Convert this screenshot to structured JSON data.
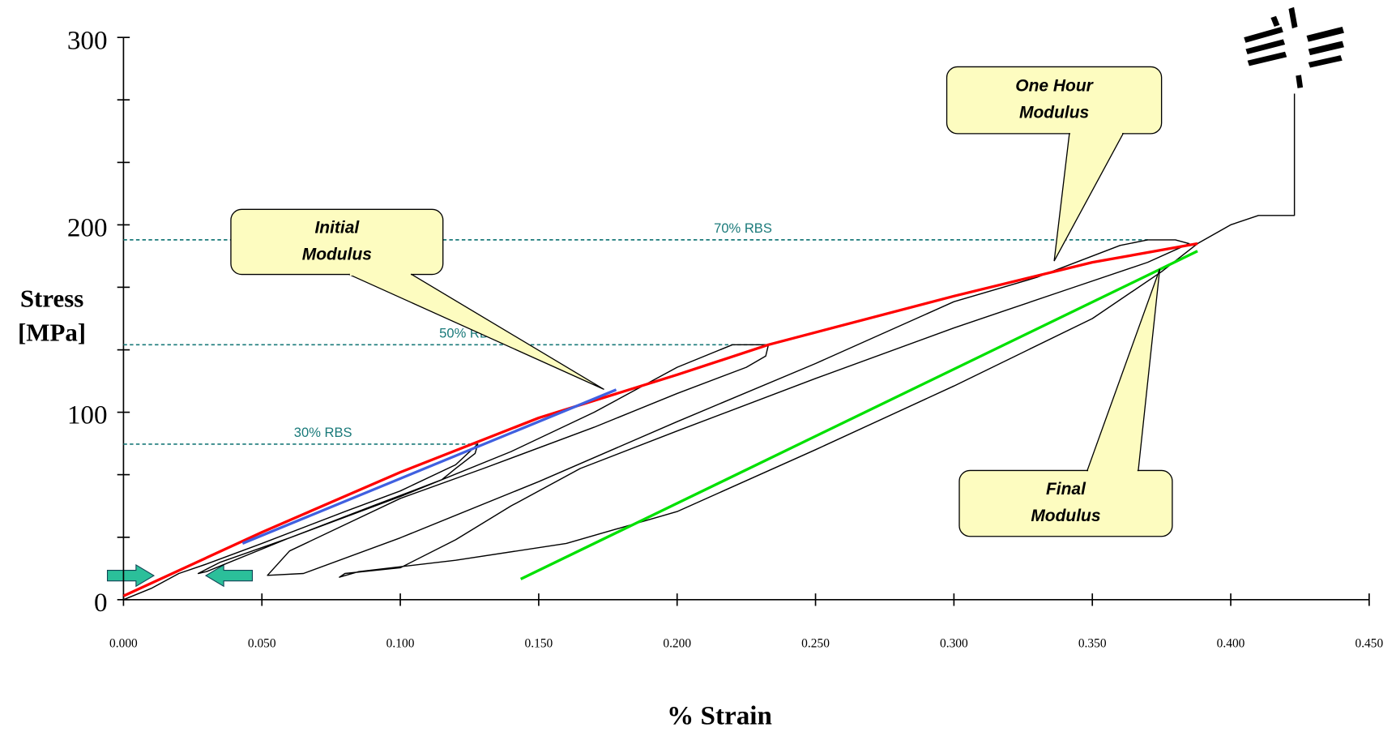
{
  "chart_data": {
    "type": "line",
    "x_label": "% Strain",
    "y_label": [
      "Stress",
      "[MPa]"
    ],
    "xlim": [
      0,
      0.45
    ],
    "ylim": [
      0,
      300
    ],
    "xticks": [
      {
        "value": 0,
        "label": "0.000"
      },
      {
        "value": 0.05,
        "label": "0.050"
      },
      {
        "value": 0.1,
        "label": "0.100"
      },
      {
        "value": 0.15,
        "label": "0.150"
      },
      {
        "value": 0.2,
        "label": "0.200"
      },
      {
        "value": 0.25,
        "label": "0.250"
      },
      {
        "value": 0.3,
        "label": "0.300"
      },
      {
        "value": 0.35,
        "label": "0.350"
      },
      {
        "value": 0.4,
        "label": "0.400"
      },
      {
        "value": 0.45,
        "label": "0.450"
      }
    ],
    "yticks": [
      0,
      100,
      200,
      300
    ],
    "y_minor_ticks": [
      33.3,
      66.7,
      133.3,
      166.7,
      233.3,
      266.7
    ],
    "series": [
      {
        "color": "#000000",
        "x": [
          0,
          0.01,
          0.02,
          0.03,
          0.05,
          0.08,
          0.1,
          0.12,
          0.128,
          0.127,
          0.12,
          0.115,
          0.09,
          0.06,
          0.035,
          0.027,
          0.03,
          0.06,
          0.1,
          0.14,
          0.17,
          0.2,
          0.22,
          0.233,
          0.232,
          0.225,
          0.2,
          0.17,
          0.13,
          0.1,
          0.06,
          0.052,
          0.065,
          0.1,
          0.15,
          0.2,
          0.25,
          0.3,
          0.33,
          0.36,
          0.37,
          0.38,
          0.385,
          0.37,
          0.34,
          0.3,
          0.25,
          0.2,
          0.165,
          0.14,
          0.12,
          0.1,
          0.08,
          0.078,
          0.085,
          0.12,
          0.16,
          0.2,
          0.25,
          0.3,
          0.35,
          0.375,
          0.388,
          0.4,
          0.41,
          0.423,
          0.423
        ],
        "values": [
          0,
          6,
          14,
          19,
          30,
          47,
          58,
          72,
          83,
          78,
          70,
          64,
          50,
          33,
          20,
          14,
          15,
          33,
          55,
          79,
          100,
          124,
          136,
          136,
          130,
          124,
          110,
          92,
          70,
          54,
          26,
          13,
          14,
          33,
          63,
          95,
          126,
          159,
          172,
          189,
          192,
          192,
          190,
          180,
          165,
          145,
          118,
          90,
          70,
          50,
          32,
          17,
          14,
          12,
          15,
          21,
          30,
          47,
          80,
          114,
          150,
          175,
          190,
          200,
          205,
          205,
          270
        ]
      },
      {
        "color": "#ff0000",
        "x": [
          0,
          0.05,
          0.1,
          0.15,
          0.2,
          0.233,
          0.3,
          0.35,
          0.388
        ],
        "values": [
          2,
          36,
          68,
          97,
          120,
          136,
          162,
          180,
          190
        ]
      },
      {
        "color": "#4060e0",
        "x": [
          0.043,
          0.178
        ],
        "values": [
          30,
          112
        ]
      },
      {
        "color": "#00e000",
        "x": [
          0.1435,
          0.388
        ],
        "values": [
          11,
          186
        ]
      }
    ],
    "reference_lines": [
      {
        "label": "30% RBS",
        "y": 83,
        "x_end": 0.128,
        "color": "#1a7a7a"
      },
      {
        "label": "50% RBS",
        "y": 136,
        "x_end": 0.233,
        "color": "#1a7a7a"
      },
      {
        "label": "70% RBS",
        "y": 192,
        "x_end": 0.37,
        "color": "#1a7a7a"
      }
    ],
    "annotations": [
      {
        "lines": [
          "Initial",
          "Modulus"
        ]
      },
      {
        "lines": [
          "One Hour",
          "Modulus"
        ]
      },
      {
        "lines": [
          "Final",
          "Modulus"
        ]
      }
    ]
  }
}
